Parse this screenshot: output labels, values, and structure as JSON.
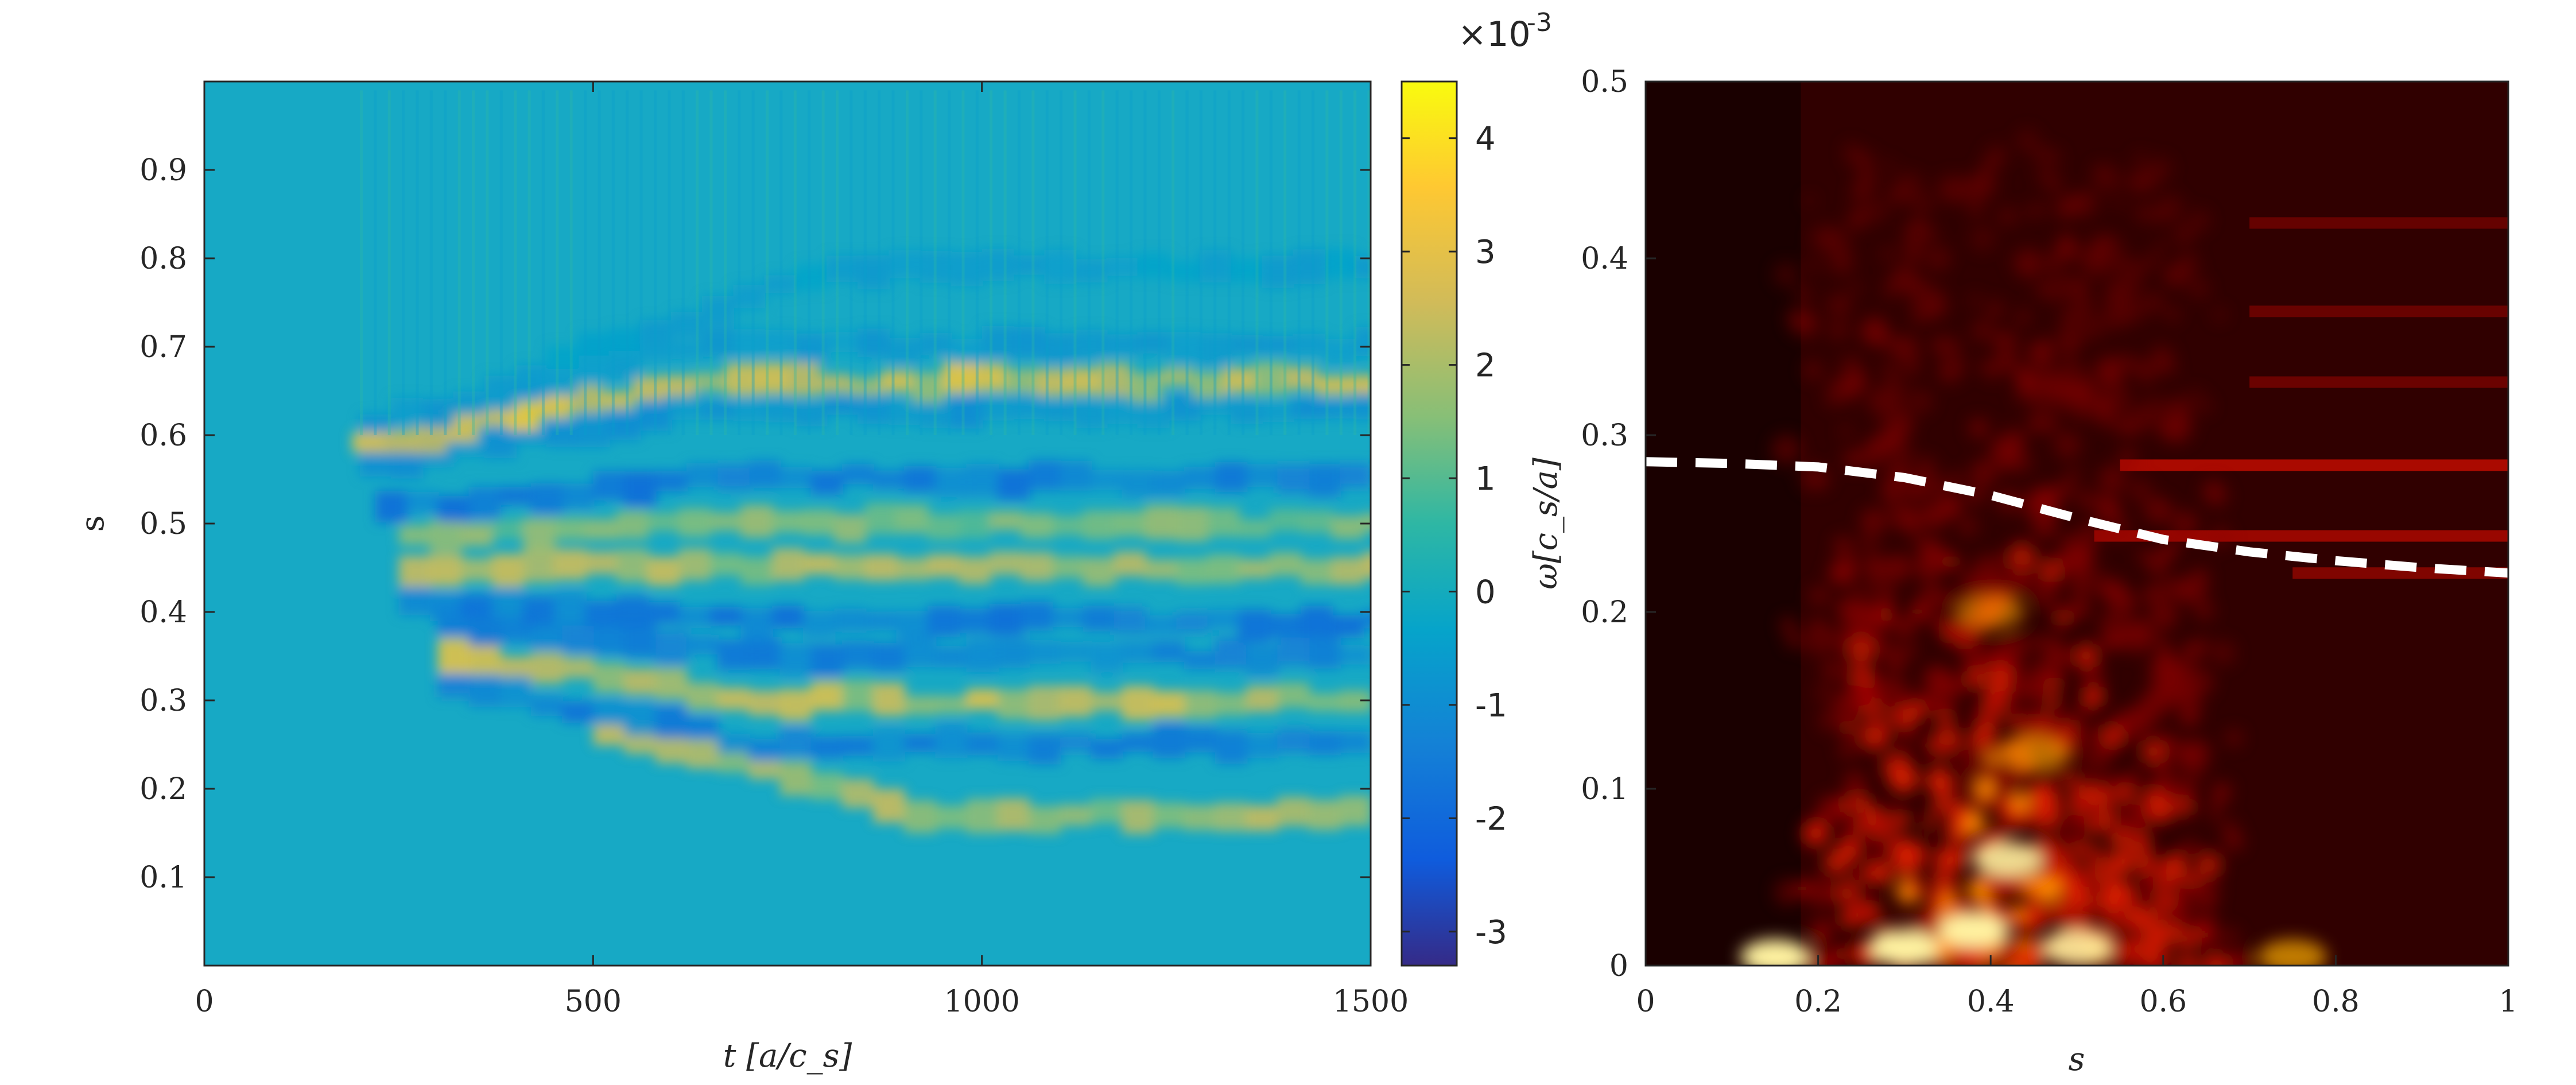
{
  "chart_data": [
    {
      "type": "heatmap",
      "title": "",
      "xlabel": "t [a/c_s]",
      "ylabel": "s",
      "xlim": [
        0,
        1500
      ],
      "ylim": [
        0,
        1
      ],
      "xticks": [
        0,
        500,
        1000,
        1500
      ],
      "yticks": [
        0.1,
        0.2,
        0.3,
        0.4,
        0.5,
        0.6,
        0.7,
        0.8,
        0.9
      ],
      "xtick_labels": [
        "0",
        "500",
        "1000",
        "1500"
      ],
      "ytick_labels": [
        "0.1",
        "0.2",
        "0.3",
        "0.4",
        "0.5",
        "0.6",
        "0.7",
        "0.8",
        "0.9"
      ],
      "colorbar": {
        "colormap": "parula",
        "range": [
          -3.3,
          4.5
        ],
        "ticks": [
          -3,
          -2,
          -1,
          0,
          1,
          2,
          3,
          4
        ],
        "tick_labels": [
          "-3",
          "-2",
          "-1",
          "0",
          "1",
          "2",
          "3",
          "4"
        ],
        "exponent_label": "×10",
        "exponent_power": "-3"
      },
      "bands": [
        {
          "s": 0.17,
          "value": 2.4,
          "t_start": 500
        },
        {
          "s": 0.25,
          "value": -1.6,
          "t_start": 300
        },
        {
          "s": 0.3,
          "value": 2.8,
          "t_start": 300
        },
        {
          "s": 0.35,
          "value": -1.6,
          "t_start": 300
        },
        {
          "s": 0.39,
          "value": -1.8,
          "t_start": 250
        },
        {
          "s": 0.45,
          "value": 2.6,
          "t_start": 250
        },
        {
          "s": 0.5,
          "value": 1.8,
          "t_start": 250
        },
        {
          "s": 0.55,
          "value": -1.8,
          "t_start": 220
        },
        {
          "s": 0.63,
          "value": -1.0,
          "t_start": 200
        },
        {
          "s": 0.66,
          "value": 3.2,
          "t_start": 190
        },
        {
          "s": 0.7,
          "value": -0.8,
          "t_start": 200
        },
        {
          "s": 0.79,
          "value": -0.6,
          "t_start": 400
        }
      ]
    },
    {
      "type": "heatmap",
      "title": "",
      "xlabel": "s",
      "ylabel": "ω[c_s/a]",
      "xlim": [
        0,
        1
      ],
      "ylim": [
        0,
        0.5
      ],
      "xticks": [
        0,
        0.2,
        0.4,
        0.6,
        0.8,
        1
      ],
      "yticks": [
        0,
        0.1,
        0.2,
        0.3,
        0.4,
        0.5
      ],
      "xtick_labels": [
        "0",
        "0.2",
        "0.4",
        "0.6",
        "0.8",
        "1"
      ],
      "ytick_labels": [
        "0",
        "0.1",
        "0.2",
        "0.3",
        "0.4",
        "0.5"
      ],
      "colormap": "hot",
      "hot_spots": [
        {
          "s": 0.15,
          "omega": 0.005,
          "intensity": 1.0
        },
        {
          "s": 0.3,
          "omega": 0.01,
          "intensity": 1.0
        },
        {
          "s": 0.38,
          "omega": 0.02,
          "intensity": 1.0
        },
        {
          "s": 0.42,
          "omega": 0.06,
          "intensity": 0.9
        },
        {
          "s": 0.5,
          "omega": 0.01,
          "intensity": 0.9
        },
        {
          "s": 0.45,
          "omega": 0.12,
          "intensity": 0.6
        },
        {
          "s": 0.4,
          "omega": 0.2,
          "intensity": 0.5
        },
        {
          "s": 0.75,
          "omega": 0.005,
          "intensity": 0.7
        }
      ],
      "horizontal_lines": [
        {
          "omega": 0.283,
          "s_start": 0.55,
          "intensity": 0.6
        },
        {
          "omega": 0.243,
          "s_start": 0.52,
          "intensity": 0.5
        },
        {
          "omega": 0.222,
          "s_start": 0.75,
          "intensity": 0.35
        },
        {
          "omega": 0.33,
          "s_start": 0.7,
          "intensity": 0.2
        },
        {
          "omega": 0.37,
          "s_start": 0.7,
          "intensity": 0.18
        },
        {
          "omega": 0.42,
          "s_start": 0.7,
          "intensity": 0.15
        }
      ],
      "dashed_curve": {
        "style": "white dashed",
        "s": [
          0,
          0.1,
          0.2,
          0.3,
          0.4,
          0.5,
          0.6,
          0.7,
          0.8,
          0.9,
          1.0
        ],
        "omega": [
          0.285,
          0.284,
          0.282,
          0.276,
          0.266,
          0.253,
          0.241,
          0.234,
          0.229,
          0.225,
          0.222
        ]
      }
    }
  ]
}
